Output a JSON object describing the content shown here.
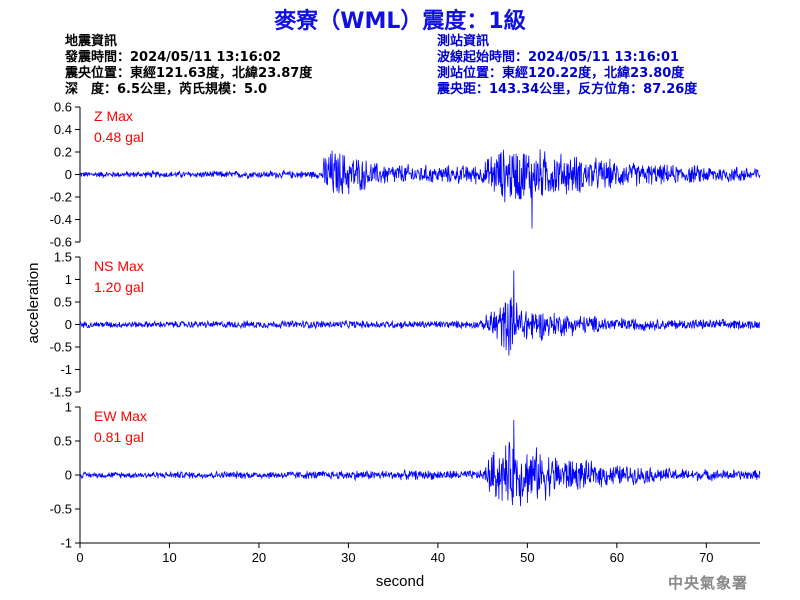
{
  "title": "麥寮（WML）震度：1級",
  "event_info": {
    "heading": "地震資訊",
    "origin_time": "發震時間：2024/05/11 13:16:02",
    "epicenter": "震央位置：東經121.63度，北緯23.87度",
    "depth_magnitude": "深　度：6.5公里，芮氏規模：5.0"
  },
  "station_info": {
    "heading": "測站資訊",
    "wave_start": "波線起始時間：2024/05/11 13:16:01",
    "location": "測站位置：東經120.22度，北緯23.80度",
    "distance": "震央距：143.34公里，反方位角：87.26度"
  },
  "footer": "中央氣象署",
  "colors": {
    "title": "#1010e0",
    "trace": "#0000ff",
    "max_label": "#ff0000",
    "station_text": "#0000cc"
  },
  "chart_data": [
    {
      "type": "line",
      "panel": "Z",
      "max_label": "Z Max",
      "max_value": "0.48 gal",
      "ylim": [
        -0.6,
        0.6
      ],
      "yticks": [
        -0.6,
        -0.4,
        -0.2,
        0,
        0.2,
        0.4,
        0.6
      ],
      "ytick_labels": [
        "-0.6",
        "-0.4",
        "-0.2",
        "0",
        "0.2",
        "0.4",
        "0.6"
      ],
      "xlim": [
        0,
        76
      ],
      "envelope": {
        "t": [
          0,
          27,
          27.5,
          30,
          33,
          40,
          45,
          46,
          48,
          50,
          55,
          60,
          65,
          76
        ],
        "amp": [
          0.03,
          0.04,
          0.28,
          0.22,
          0.12,
          0.09,
          0.1,
          0.22,
          0.3,
          0.28,
          0.2,
          0.14,
          0.1,
          0.08
        ]
      },
      "offset": 0.0,
      "peak": {
        "t": 50.5,
        "value": -0.48
      }
    },
    {
      "type": "line",
      "panel": "NS",
      "max_label": "NS Max",
      "max_value": "1.20 gal",
      "ylim": [
        -1.5,
        1.5
      ],
      "yticks": [
        -1.5,
        -1,
        -0.5,
        0,
        0.5,
        1,
        1.5
      ],
      "ytick_labels": [
        "-1.5",
        "-1",
        "-0.5",
        "0",
        "0.5",
        "1",
        "1.5"
      ],
      "xlim": [
        0,
        76
      ],
      "envelope": {
        "t": [
          0,
          27,
          30,
          45,
          46,
          48,
          49,
          52,
          56,
          60,
          65,
          76
        ],
        "amp": [
          0.08,
          0.1,
          0.1,
          0.1,
          0.45,
          0.75,
          0.6,
          0.35,
          0.25,
          0.18,
          0.14,
          0.12
        ]
      },
      "offset": 0.0,
      "peak": {
        "t": 48.5,
        "value": 1.2
      }
    },
    {
      "type": "line",
      "panel": "EW",
      "max_label": "EW Max",
      "max_value": "0.81 gal",
      "ylim": [
        -1,
        1
      ],
      "yticks": [
        -1,
        -0.5,
        0,
        0.5,
        1
      ],
      "ytick_labels": [
        "-1",
        "-0.5",
        "0",
        "0.5",
        "1"
      ],
      "xlim": [
        0,
        76
      ],
      "envelope": {
        "t": [
          0,
          27,
          30,
          45,
          46,
          48,
          50,
          53,
          57,
          62,
          68,
          76
        ],
        "amp": [
          0.05,
          0.07,
          0.08,
          0.08,
          0.4,
          0.55,
          0.5,
          0.35,
          0.22,
          0.15,
          0.1,
          0.08
        ]
      },
      "offset": 0.0,
      "peak": {
        "t": 48.5,
        "value": 0.81
      }
    }
  ],
  "axes": {
    "xlabel": "second",
    "ylabel": "acceleration",
    "xticks": [
      0,
      10,
      20,
      30,
      40,
      50,
      60,
      70
    ],
    "xtick_labels": [
      "0",
      "10",
      "20",
      "30",
      "40",
      "50",
      "60",
      "70"
    ]
  }
}
